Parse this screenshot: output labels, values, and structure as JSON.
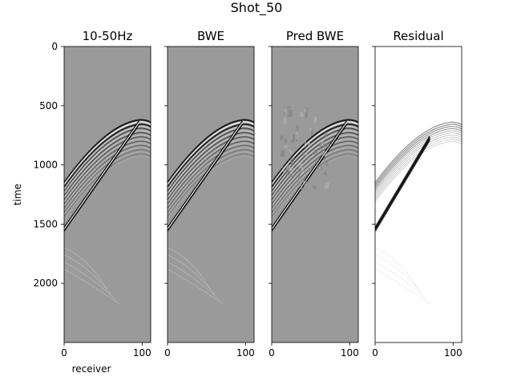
{
  "figure": {
    "title": "Shot_50"
  },
  "chart_data": [
    {
      "type": "heatmap",
      "title": "10-50Hz",
      "xlabel": "receiver",
      "ylabel": "time",
      "xlim": [
        0,
        111
      ],
      "ylim": [
        2500,
        0
      ],
      "xticks": [
        0,
        100
      ],
      "yticks": [
        0,
        500,
        1000,
        1500,
        2000
      ],
      "colormap": "gray",
      "background": "#9a9a9a",
      "events": {
        "apex_receiver": 96,
        "apex_time": 620,
        "left_edge_time": 1150,
        "direct_arrival": {
          "from": [
            0,
            1530
          ],
          "to": [
            96,
            630
          ]
        },
        "faint_deep_curves": true
      }
    },
    {
      "type": "heatmap",
      "title": "BWE",
      "xlim": [
        0,
        111
      ],
      "ylim": [
        2500,
        0
      ],
      "xticks": [
        0,
        100
      ],
      "yticks": [
        0,
        500,
        1000,
        1500,
        2000
      ],
      "colormap": "gray",
      "background": "#9a9a9a",
      "events": {
        "apex_receiver": 96,
        "apex_time": 620,
        "left_edge_time": 1150,
        "direct_arrival": {
          "from": [
            0,
            1530
          ],
          "to": [
            96,
            630
          ]
        },
        "faint_deep_curves": true
      }
    },
    {
      "type": "heatmap",
      "title": "Pred BWE",
      "xlim": [
        0,
        111
      ],
      "ylim": [
        2500,
        0
      ],
      "xticks": [
        0,
        100
      ],
      "yticks": [
        0,
        500,
        1000,
        1500,
        2000
      ],
      "colormap": "gray",
      "background": "#9a9a9a",
      "events": {
        "apex_receiver": 96,
        "apex_time": 620,
        "left_edge_time": 1150,
        "direct_arrival": {
          "from": [
            0,
            1530
          ],
          "to": [
            96,
            630
          ]
        },
        "noise_cloud": true
      }
    },
    {
      "type": "heatmap",
      "title": "Residual",
      "xlim": [
        0,
        111
      ],
      "ylim": [
        2500,
        0
      ],
      "xticks": [
        0,
        100
      ],
      "yticks": [
        0,
        500,
        1000,
        1500,
        2000
      ],
      "colormap": "gray_r",
      "background": "#ffffff",
      "events": {
        "apex_receiver": 96,
        "apex_time": 640,
        "left_edge_time": 1150,
        "direct_arrival": {
          "from": [
            0,
            1530
          ],
          "to": [
            70,
            760
          ]
        },
        "sparse_residual": true
      }
    }
  ]
}
